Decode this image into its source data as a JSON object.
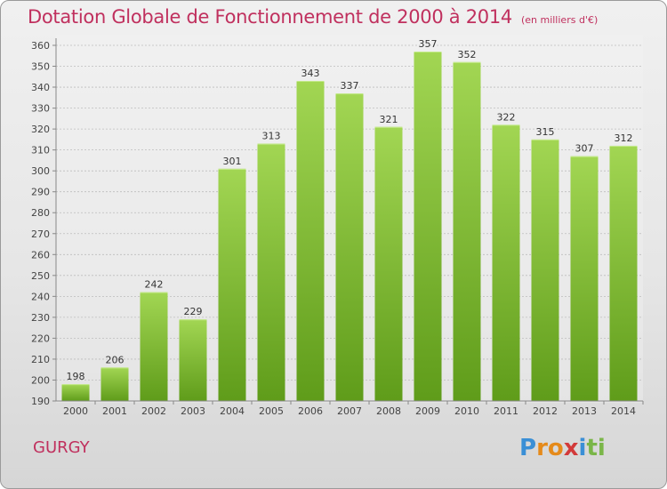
{
  "header": {
    "title": "Dotation Globale de Fonctionnement de 2000 à 2014",
    "subtitle": "(en milliers d'€)"
  },
  "footer": {
    "commune": "GURGY",
    "brand_letters": [
      "P",
      "r",
      "o",
      "x",
      "i",
      "t",
      "i"
    ],
    "brand_colors": [
      "#3a8fd6",
      "#e58a1a",
      "#e58a1a",
      "#d23a3a",
      "#3a8fd6",
      "#7ab648",
      "#7ab648"
    ]
  },
  "chart_data": {
    "type": "bar",
    "categories": [
      "2000",
      "2001",
      "2002",
      "2003",
      "2004",
      "2005",
      "2006",
      "2007",
      "2008",
      "2009",
      "2010",
      "2011",
      "2012",
      "2013",
      "2014"
    ],
    "values": [
      198,
      206,
      242,
      229,
      301,
      313,
      343,
      337,
      321,
      357,
      352,
      322,
      315,
      307,
      312
    ],
    "data_labels": [
      "198",
      "206",
      "242",
      "229",
      "301",
      "313",
      "343",
      "337",
      "321",
      "357",
      "352",
      "322",
      "315",
      "307",
      "312"
    ],
    "yticks": [
      "190",
      "200",
      "210",
      "220",
      "230",
      "240",
      "250",
      "260",
      "270",
      "280",
      "290",
      "300",
      "310",
      "320",
      "330",
      "340",
      "350",
      "360"
    ],
    "ylim": [
      190,
      360
    ],
    "grid": true,
    "bar_color": "#8cc63f",
    "xlabel": "",
    "ylabel": ""
  }
}
